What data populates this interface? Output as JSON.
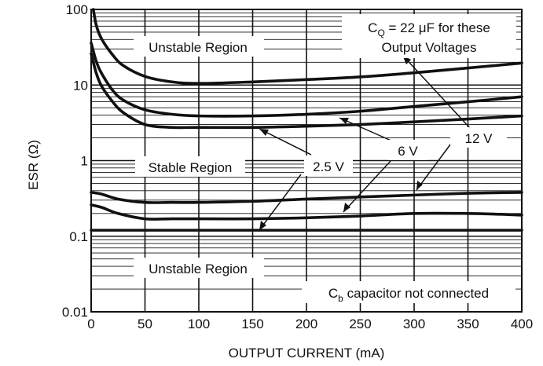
{
  "chart_data": {
    "type": "line",
    "xlabel": "OUTPUT CURRENT (mA)",
    "ylabel": "ESR (Ω)",
    "xlim": [
      0,
      400
    ],
    "ylim": [
      0.01,
      100
    ],
    "y_scale": "log",
    "grid": true,
    "x_ticks": [
      "0",
      "50",
      "100",
      "150",
      "200",
      "250",
      "300",
      "350",
      "400"
    ],
    "y_ticks": [
      "0.01",
      "0.1",
      "1",
      "10",
      "100"
    ],
    "series": [
      {
        "x": [
          2,
          5,
          10,
          20,
          30,
          50,
          75,
          100,
          150,
          200,
          250,
          300,
          350,
          400
        ],
        "values": [
          100,
          60,
          40,
          25,
          18,
          13,
          11,
          10.5,
          11,
          11.8,
          12.8,
          14.5,
          16.8,
          19.5
        ]
      },
      {
        "x": [
          0,
          5,
          10,
          20,
          30,
          50,
          75,
          100,
          150,
          200,
          250,
          300,
          350,
          400
        ],
        "values": [
          36,
          20,
          14,
          8.5,
          6.3,
          4.7,
          4.1,
          3.9,
          3.9,
          4.1,
          4.5,
          5.2,
          6.0,
          7.0
        ]
      },
      {
        "x": [
          0,
          5,
          10,
          20,
          30,
          50,
          75,
          100,
          150,
          200,
          250,
          300,
          350,
          400
        ],
        "values": [
          26,
          14,
          9.5,
          6,
          4.3,
          3.0,
          2.75,
          2.75,
          2.75,
          2.85,
          3.0,
          3.25,
          3.55,
          3.9
        ]
      },
      {
        "x": [
          0,
          10,
          25,
          50,
          75,
          100,
          150,
          200,
          250,
          300,
          350,
          400
        ],
        "values": [
          0.38,
          0.36,
          0.31,
          0.28,
          0.28,
          0.28,
          0.29,
          0.31,
          0.33,
          0.35,
          0.37,
          0.38
        ]
      },
      {
        "x": [
          0,
          10,
          25,
          50,
          75,
          100,
          150,
          200,
          250,
          300,
          350,
          380,
          400
        ],
        "values": [
          0.26,
          0.24,
          0.2,
          0.17,
          0.17,
          0.17,
          0.17,
          0.175,
          0.185,
          0.2,
          0.2,
          0.195,
          0.19
        ]
      },
      {
        "x": [
          0,
          400
        ],
        "values": [
          0.12,
          0.12
        ]
      }
    ],
    "annotations": {
      "unstable_top": "Unstable Region",
      "stable": "Stable Region",
      "unstable_bottom": "Unstable Region",
      "cq_note_prefix": "C",
      "cq_note_sub": "Q",
      "cq_note_rest": " = 22 μF for these",
      "cq_note_line2": "Output Voltages",
      "cb_note_prefix": "C",
      "cb_note_sub": "b",
      "cb_note_rest": " capacitor not connected",
      "label_2v5": "2.5 V",
      "label_6v": "6 V",
      "label_12v": "12 V"
    }
  }
}
